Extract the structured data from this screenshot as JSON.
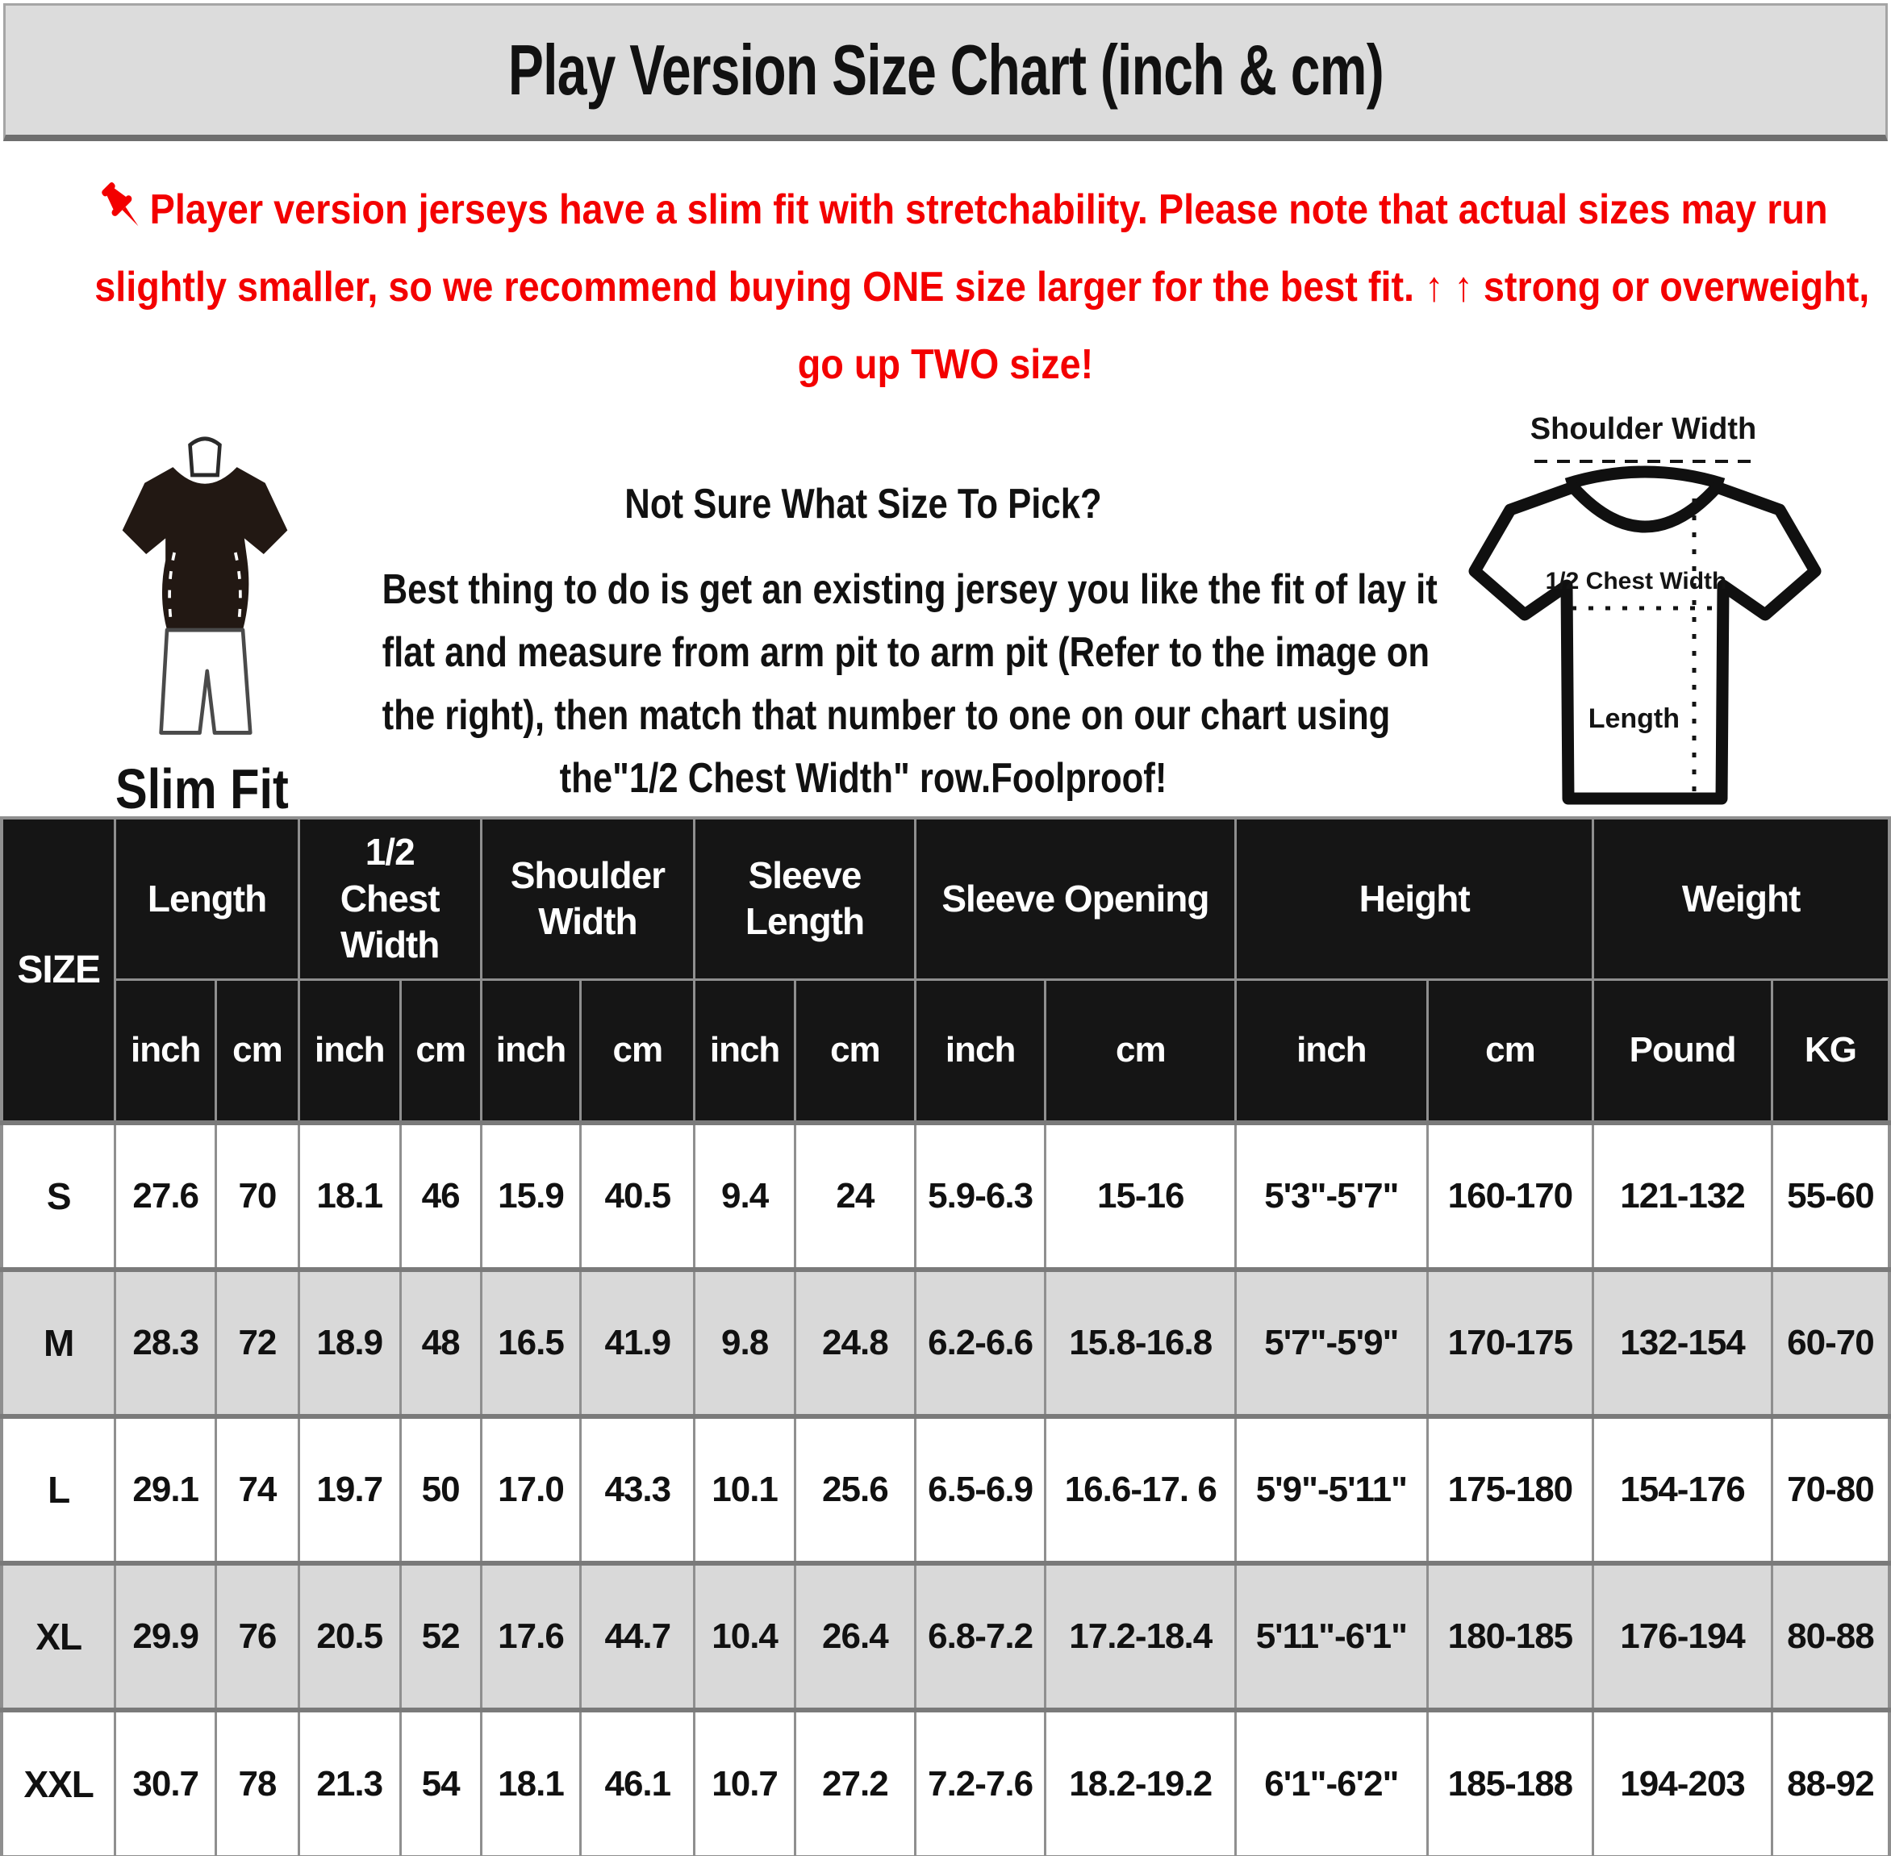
{
  "title": "Play Version Size Chart (inch & cm)",
  "warning": {
    "lines": [
      "Player version jerseys have a slim fit with stretchability. Please note that actual sizes may run",
      "slightly smaller, so we recommend buying ONE size larger for the best fit. ↑ ↑ strong or overweight,",
      "go up TWO size!"
    ],
    "color": "#f30000"
  },
  "slim_fit": {
    "label": "Slim Fit"
  },
  "guide": {
    "heading": "Not Sure What Size To Pick?",
    "lines": [
      "Best thing to do is get an existing jersey you like the fit of lay it",
      "flat and measure from arm pit to arm pit (Refer to the image on",
      "the right), then match that number to one on our chart using",
      "the\"1/2 Chest Width\" row.Foolproof!"
    ]
  },
  "diagram": {
    "shoulder_label": "Shoulder Width",
    "chest_label": "1/2 Chest Width",
    "length_label": "Length"
  },
  "table": {
    "size_header": "SIZE",
    "groups": [
      {
        "label": "Length",
        "units": [
          "inch",
          "cm"
        ]
      },
      {
        "label": "1/2 Chest Width",
        "units": [
          "inch",
          "cm"
        ]
      },
      {
        "label": "Shoulder Width",
        "units": [
          "inch",
          "cm"
        ]
      },
      {
        "label": "Sleeve Length",
        "units": [
          "inch",
          "cm"
        ]
      },
      {
        "label": "Sleeve Opening",
        "units": [
          "inch",
          "cm"
        ]
      },
      {
        "label": "Height",
        "units": [
          "inch",
          "cm"
        ]
      },
      {
        "label": "Weight",
        "units": [
          "Pound",
          "KG"
        ]
      }
    ],
    "rows": [
      {
        "size": "S",
        "values": [
          "27.6",
          "70",
          "18.1",
          "46",
          "15.9",
          "40.5",
          "9.4",
          "24",
          "5.9-6.3",
          "15-16",
          "5'3\"-5'7\"",
          "160-170",
          "121-132",
          "55-60"
        ]
      },
      {
        "size": "M",
        "values": [
          "28.3",
          "72",
          "18.9",
          "48",
          "16.5",
          "41.9",
          "9.8",
          "24.8",
          "6.2-6.6",
          "15.8-16.8",
          "5'7\"-5'9\"",
          "170-175",
          "132-154",
          "60-70"
        ]
      },
      {
        "size": "L",
        "values": [
          "29.1",
          "74",
          "19.7",
          "50",
          "17.0",
          "43.3",
          "10.1",
          "25.6",
          "6.5-6.9",
          "16.6-17. 6",
          "5'9\"-5'11\"",
          "175-180",
          "154-176",
          "70-80"
        ]
      },
      {
        "size": "XL",
        "values": [
          "29.9",
          "76",
          "20.5",
          "52",
          "17.6",
          "44.7",
          "10.4",
          "26.4",
          "6.8-7.2",
          "17.2-18.4",
          "5'11\"-6'1\"",
          "180-185",
          "176-194",
          "80-88"
        ]
      },
      {
        "size": "XXL",
        "values": [
          "30.7",
          "78",
          "21.3",
          "54",
          "18.1",
          "46.1",
          "10.7",
          "27.2",
          "7.2-7.6",
          "18.2-19.2",
          "6'1\"-6'2\"",
          "185-188",
          "194-203",
          "88-92"
        ]
      }
    ]
  },
  "colors": {
    "accent_red": "#f30000",
    "title_bar_bg": "#dcdcdc",
    "table_header_bg": "#151515",
    "row_alt_bg": "#d9d9d9",
    "border_gray": "#8f8f8f"
  }
}
